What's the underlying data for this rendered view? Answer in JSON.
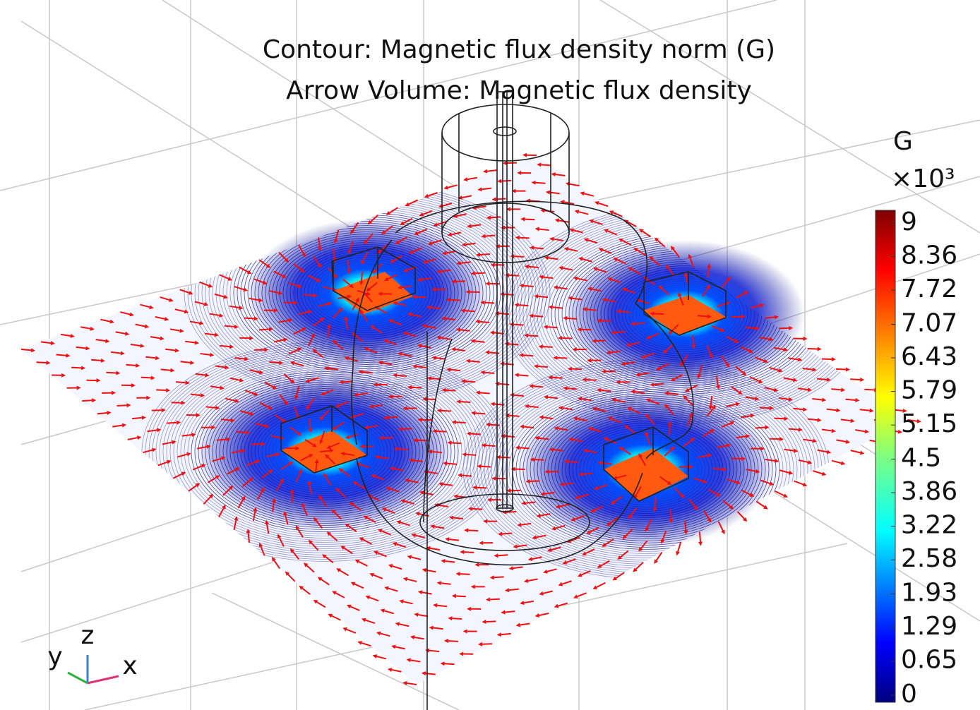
{
  "chart_data": {
    "type": "contour",
    "title": "Contour: Magnetic flux density norm (G)",
    "subtitle": "Arrow Volume: Magnetic flux density",
    "colorbar": {
      "unit": "G",
      "multiplier": "×10³",
      "clim": [
        0,
        9
      ],
      "ticks": [
        0,
        0.65,
        1.29,
        1.93,
        2.58,
        3.22,
        3.86,
        4.5,
        5.15,
        5.79,
        6.43,
        7.07,
        7.72,
        8.36,
        9
      ]
    },
    "axes": {
      "x": "x",
      "y": "y",
      "z": "z"
    }
  }
}
